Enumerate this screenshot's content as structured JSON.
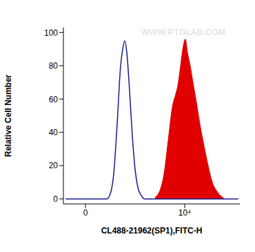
{
  "chart_data": {
    "type": "histogram",
    "x_label": "CL488-21962(SP1),FITC-H",
    "y_label": "Relative Cell Number",
    "annotations": [
      "WWW.PTGLAB.COM"
    ],
    "xlim": [
      -2222,
      15556
    ],
    "xticks": [
      0,
      {
        "value": 10000,
        "label": "10⁴"
      }
    ],
    "ylim": [
      -3,
      103
    ],
    "yticks": [
      0,
      20,
      40,
      60,
      80,
      100
    ],
    "series": [
      {
        "type": "line",
        "color": "#1a1a8c",
        "x": [
          -2000,
          2153,
          2500,
          2847,
          3194,
          3542,
          3750,
          3958,
          4167,
          4444,
          4722,
          5000,
          5278,
          5625,
          5972,
          15400
        ],
        "values": [
          0,
          0,
          3,
          15,
          45,
          80,
          90,
          95,
          88,
          65,
          38,
          18,
          7,
          2,
          0,
          0
        ]
      },
      {
        "type": "area",
        "color": "#e00000",
        "x": [
          7014,
          7500,
          7917,
          8333,
          8750,
          9097,
          9306,
          9583,
          9861,
          10069,
          10278,
          10556,
          10833,
          11181,
          11528,
          11944,
          12361,
          12778,
          13194,
          13611,
          14028
        ],
        "values": [
          1,
          5,
          15,
          35,
          55,
          63,
          68,
          80,
          92,
          96,
          88,
          80,
          70,
          58,
          45,
          32,
          20,
          10,
          5,
          2,
          0
        ]
      }
    ]
  }
}
